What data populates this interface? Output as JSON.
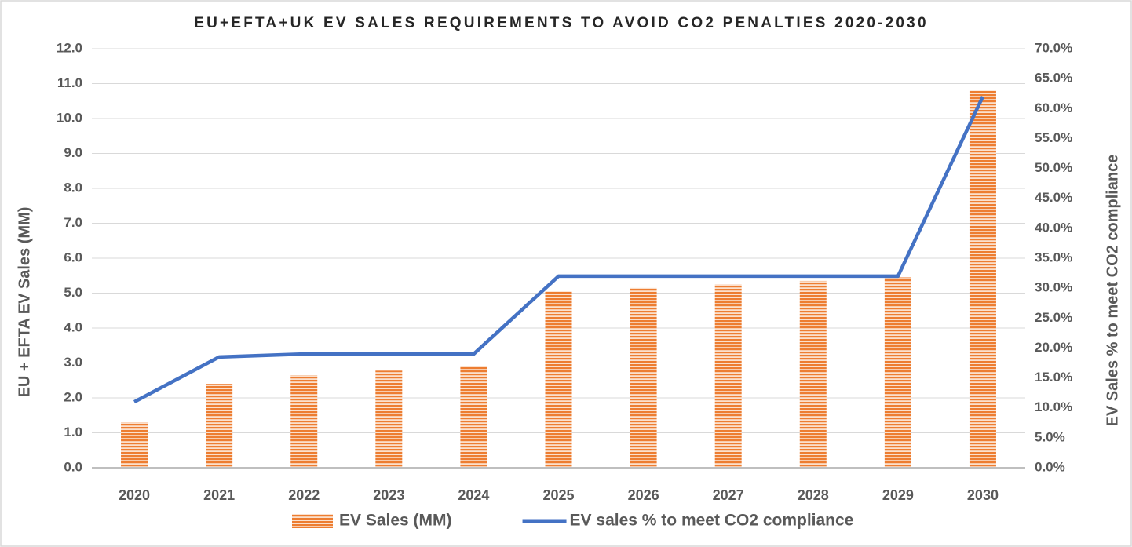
{
  "chart_data": {
    "type": "bar_line",
    "title": "EU+EFTA+UK EV SALES REQUIREMENTS TO AVOID CO2 PENALTIES 2020-2030",
    "y_label": "EU + EFTA EV Sales (MM)",
    "y2_label": "EV Sales % to meet CO2 compliance",
    "categories": [
      "2020",
      "2021",
      "2022",
      "2023",
      "2024",
      "2025",
      "2026",
      "2027",
      "2028",
      "2029",
      "2030"
    ],
    "series": [
      {
        "name": "EV Sales (MM)",
        "type": "bar",
        "color": "#ed7d31",
        "values": [
          1.3,
          2.4,
          2.65,
          2.78,
          2.92,
          5.05,
          5.15,
          5.25,
          5.35,
          5.45,
          10.8
        ]
      },
      {
        "name": "EV sales % to meet CO2 compliance",
        "type": "line",
        "axis": "y2",
        "color": "#4472c4",
        "values": [
          11.0,
          18.5,
          19.0,
          19.0,
          19.0,
          32.0,
          32.0,
          32.0,
          32.0,
          32.0,
          62.0
        ]
      }
    ],
    "ylim": [
      0,
      12
    ],
    "yticks": [
      {
        "value": 0,
        "label": "0.0"
      },
      {
        "value": 1,
        "label": "1.0"
      },
      {
        "value": 2,
        "label": "2.0"
      },
      {
        "value": 3,
        "label": "3.0"
      },
      {
        "value": 4,
        "label": "4.0"
      },
      {
        "value": 5,
        "label": "5.0"
      },
      {
        "value": 6,
        "label": "6.0"
      },
      {
        "value": 7,
        "label": "7.0"
      },
      {
        "value": 8,
        "label": "8.0"
      },
      {
        "value": 9,
        "label": "9.0"
      },
      {
        "value": 10,
        "label": "10.0"
      },
      {
        "value": 11,
        "label": "11.0"
      },
      {
        "value": 12,
        "label": "12.0"
      }
    ],
    "y2lim": [
      0,
      70
    ],
    "y2ticks": [
      {
        "value": 0,
        "label": "0.0%"
      },
      {
        "value": 5,
        "label": "5.0%"
      },
      {
        "value": 10,
        "label": "10.0%"
      },
      {
        "value": 15,
        "label": "15.0%"
      },
      {
        "value": 20,
        "label": "20.0%"
      },
      {
        "value": 25,
        "label": "25.0%"
      },
      {
        "value": 30,
        "label": "30.0%"
      },
      {
        "value": 35,
        "label": "35.0%"
      },
      {
        "value": 40,
        "label": "40.0%"
      },
      {
        "value": 45,
        "label": "45.0%"
      },
      {
        "value": 50,
        "label": "50.0%"
      },
      {
        "value": 55,
        "label": "55.0%"
      },
      {
        "value": 60,
        "label": "60.0%"
      },
      {
        "value": 65,
        "label": "65.0%"
      },
      {
        "value": 70,
        "label": "70.0%"
      }
    ],
    "grid": true,
    "legend": "bottom"
  }
}
